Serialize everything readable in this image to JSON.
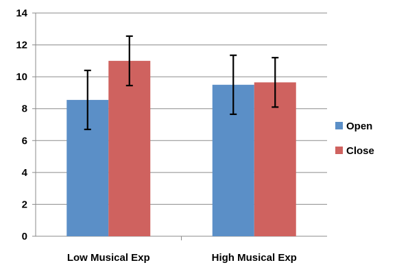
{
  "chart_data": {
    "type": "bar",
    "categories": [
      "Low Musical Exp",
      "High Musical Exp"
    ],
    "series": [
      {
        "name": "Open",
        "color": "#5b8fc7",
        "values": [
          8.55,
          9.5
        ],
        "error_low": [
          6.7,
          7.65
        ],
        "error_high": [
          10.4,
          11.35
        ]
      },
      {
        "name": "Close",
        "color": "#cf625f",
        "values": [
          11.0,
          9.65
        ],
        "error_low": [
          9.45,
          8.1
        ],
        "error_high": [
          12.55,
          11.2
        ]
      }
    ],
    "ylim": [
      0,
      14
    ],
    "yticks": [
      0,
      2,
      4,
      6,
      8,
      10,
      12,
      14
    ],
    "grid": true,
    "gridline_color": "#8a8a8a",
    "legend_placement": "right",
    "title": "",
    "xlabel": "",
    "ylabel": ""
  }
}
